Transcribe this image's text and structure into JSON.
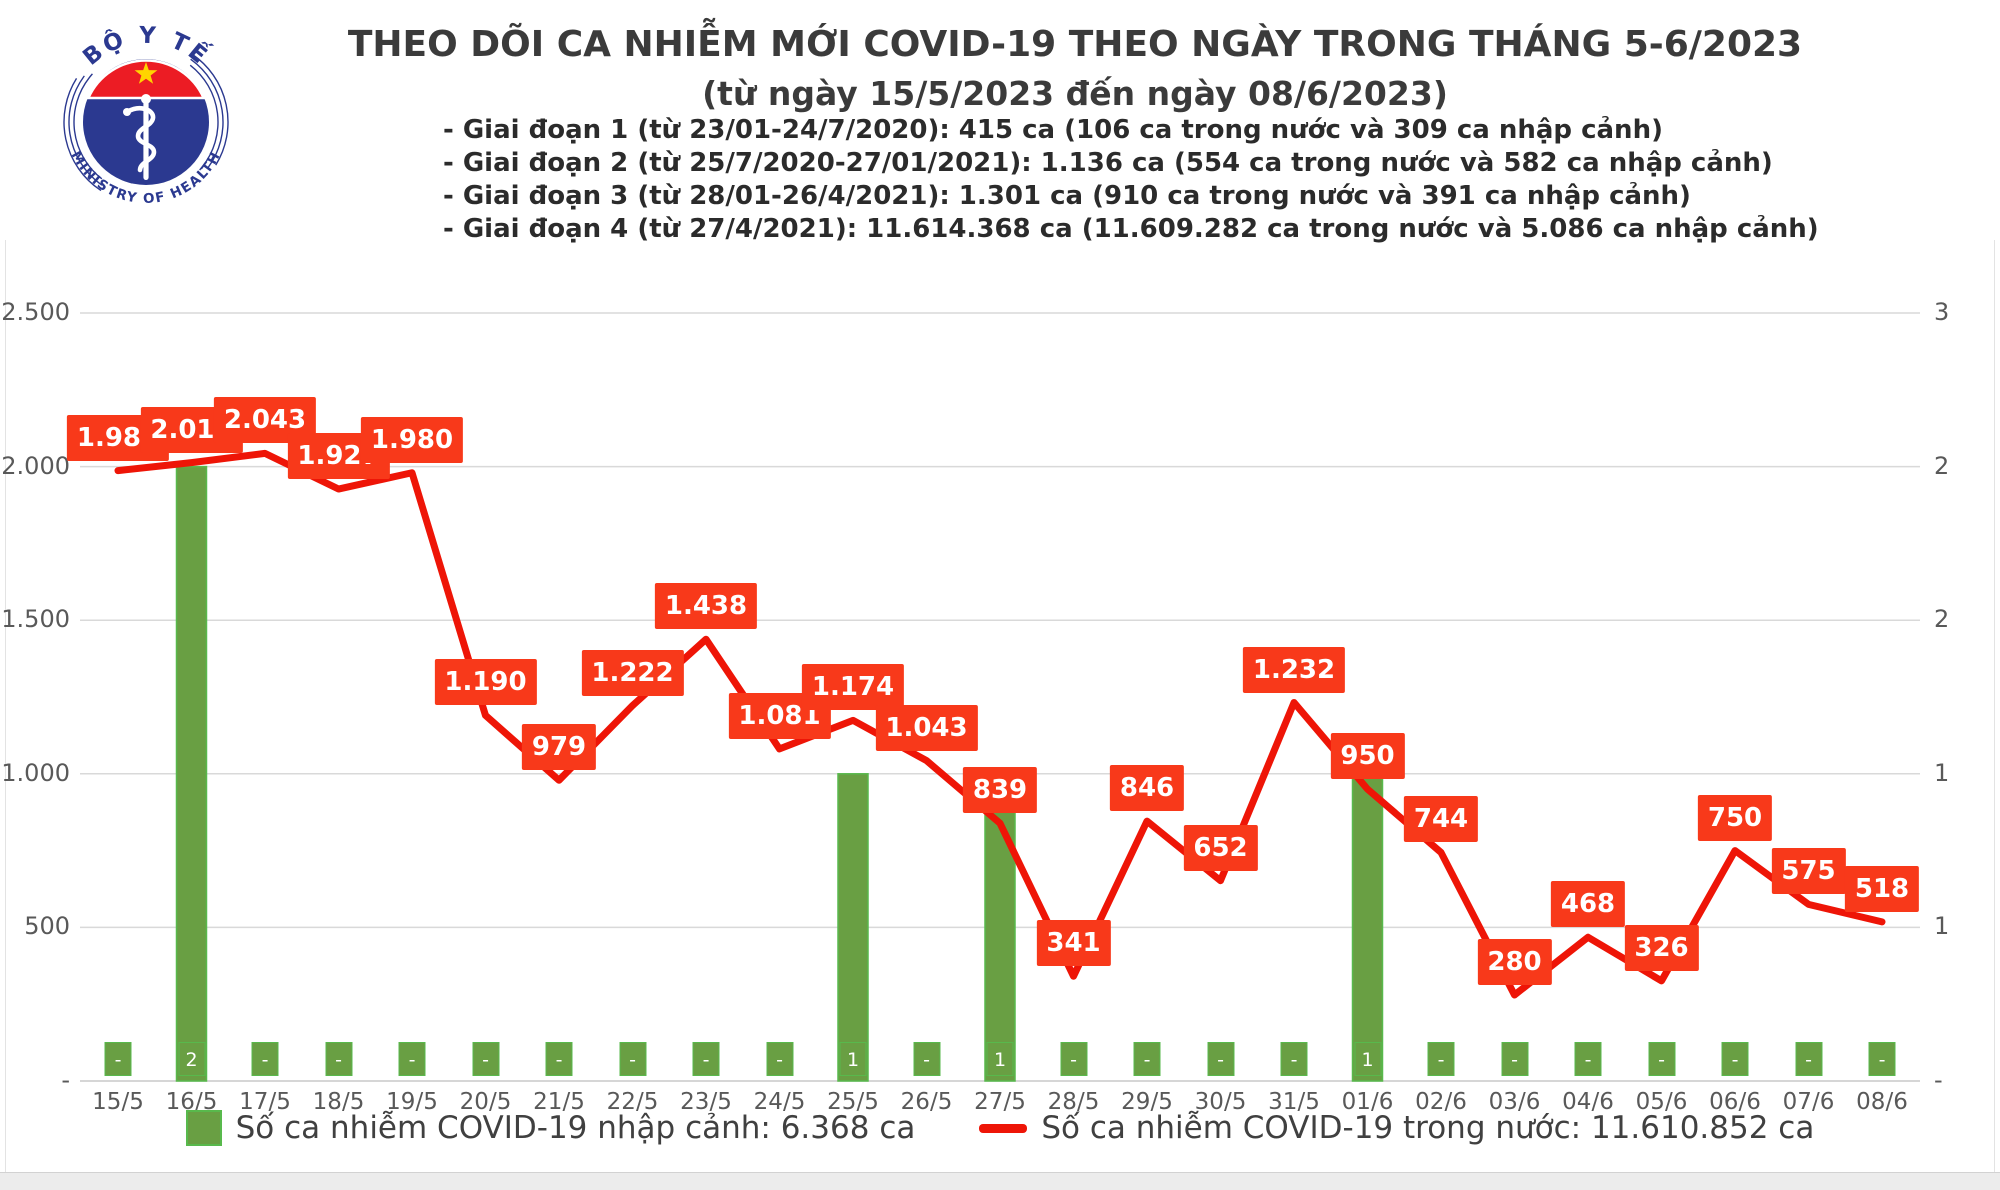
{
  "logo": {
    "top_text": "BỘ Y TẾ",
    "bottom_text": "MINISTRY OF HEALTH",
    "colors": {
      "blue": "#2b3990",
      "red": "#ec1c24",
      "star_yellow": "#ffd400"
    }
  },
  "header": {
    "title": "THEO DÕI CA NHIỄM MỚI COVID-19 THEO NGÀY TRONG THÁNG 5-6/2023",
    "subtitle": "(từ ngày 15/5/2023 đến ngày 08/6/2023)",
    "phases": [
      "- Giai đoạn 1 (từ 23/01-24/7/2020): 415 ca (106 ca trong nước và 309 ca nhập cảnh)",
      "- Giai đoạn 2 (từ 25/7/2020-27/01/2021): 1.136 ca (554 ca trong nước và 582 ca nhập cảnh)",
      "- Giai đoạn 3 (từ 28/01-26/4/2021): 1.301 ca (910 ca trong nước và 391 ca nhập cảnh)",
      "- Giai đoạn 4 (từ 27/4/2021): 11.614.368 ca (11.609.282 ca trong nước và 5.086 ca nhập cảnh)"
    ]
  },
  "chart_data": {
    "type": "combo-bar-line",
    "categories": [
      "15/5",
      "16/5",
      "17/5",
      "18/5",
      "19/5",
      "20/5",
      "21/5",
      "22/5",
      "23/5",
      "24/5",
      "25/5",
      "26/5",
      "27/5",
      "28/5",
      "29/5",
      "30/5",
      "31/5",
      "01/6",
      "02/6",
      "03/6",
      "04/6",
      "05/6",
      "06/6",
      "07/6",
      "08/6"
    ],
    "series": [
      {
        "name": "Số ca nhiễm COVID-19 trong nước",
        "type": "line",
        "axis": "left",
        "values": [
          1987,
          2013,
          2043,
          1927,
          1980,
          1190,
          979,
          1222,
          1438,
          1081,
          1174,
          1043,
          839,
          341,
          846,
          652,
          1232,
          950,
          744,
          280,
          468,
          326,
          750,
          575,
          518
        ],
        "value_labels": [
          "1.987",
          "2.013",
          "2.043",
          "1.927",
          "1.980",
          "1.190",
          "979",
          "1.222",
          "1.438",
          "1.081",
          "1.174",
          "1.043",
          "839",
          "341",
          "846",
          "652",
          "1.232",
          "950",
          "744",
          "280",
          "468",
          "326",
          "750",
          "575",
          "518"
        ]
      },
      {
        "name": "Số ca nhiễm COVID-19 nhập cảnh",
        "type": "bar",
        "axis": "right",
        "values": [
          0,
          2,
          0,
          0,
          0,
          0,
          0,
          0,
          0,
          0,
          1,
          0,
          1,
          0,
          0,
          0,
          0,
          1,
          0,
          0,
          0,
          0,
          0,
          0,
          0
        ],
        "value_labels": [
          "-",
          "2",
          "-",
          "-",
          "-",
          "-",
          "-",
          "-",
          "-",
          "-",
          "1",
          "-",
          "1",
          "-",
          "-",
          "-",
          "-",
          "1",
          "-",
          "-",
          "-",
          "-",
          "-",
          "-",
          "-"
        ]
      }
    ],
    "left_axis": {
      "min": 0,
      "max": 2500,
      "step": 500,
      "tick_labels": [
        "2.500",
        "2.000",
        "1.500",
        "1.000",
        "500",
        "-"
      ]
    },
    "right_axis": {
      "min": 0,
      "max": 2.5,
      "tick_labels": [
        "3",
        "2",
        "2",
        "1",
        "1",
        "-"
      ]
    },
    "grid": true,
    "legend_position": "bottom",
    "colors": {
      "line": "#ee1507",
      "label_bg": "#f8391a",
      "bar_fill": "#699f43",
      "bar_border": "#58b94c",
      "grid": "#d9d9d9",
      "axis_line": "#c8c8c8",
      "axis_text": "#595959"
    }
  },
  "legend": {
    "items": [
      {
        "label": "Số ca nhiễm COVID-19 nhập cảnh: 6.368 ca",
        "type": "bar"
      },
      {
        "label": "Số ca nhiễm COVID-19 trong nước: 11.610.852 ca",
        "type": "line"
      }
    ]
  }
}
